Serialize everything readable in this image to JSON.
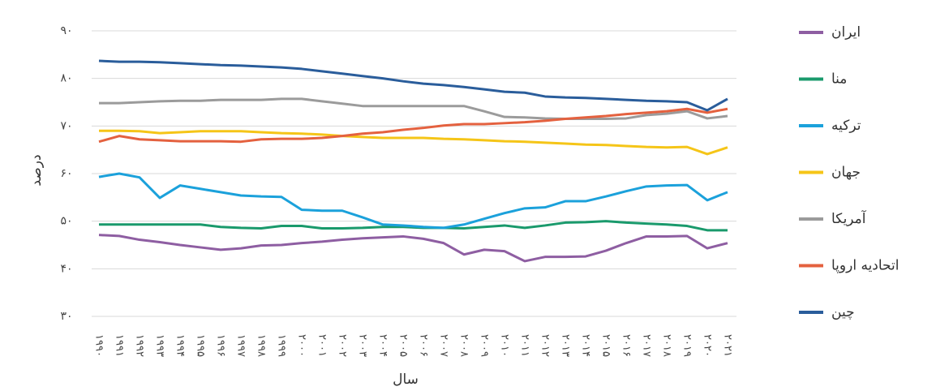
{
  "chart_data": {
    "type": "line",
    "x_label": "سال",
    "y_label": "درصد",
    "categories": [
      "۱۹۹۰",
      "۱۹۹۱",
      "۱۹۹۲",
      "۱۹۹۳",
      "۱۹۹۴",
      "۱۹۹۵",
      "۱۹۹۶",
      "۱۹۹۷",
      "۱۹۹۸",
      "۱۹۹۹",
      "۲۰۰۰",
      "۲۰۰۱",
      "۲۰۰۲",
      "۲۰۰۳",
      "۲۰۰۴",
      "۲۰۰۵",
      "۲۰۰۶",
      "۲۰۰۷",
      "۲۰۰۸",
      "۲۰۰۹",
      "۲۰۱۰",
      "۲۰۱۱",
      "۲۰۱۲",
      "۲۰۱۳",
      "۲۰۱۴",
      "۲۰۱۵",
      "۲۰۱۶",
      "۲۰۱۷",
      "۲۰۱۸",
      "۲۰۱۹",
      "۲۰۲۰",
      "۲۰۲۱"
    ],
    "series": [
      {
        "name": "ایران",
        "color": "#8e5ea2",
        "values": [
          47.1,
          46.9,
          46.1,
          45.6,
          45.0,
          44.5,
          44.0,
          44.3,
          44.9,
          45.0,
          45.4,
          45.7,
          46.1,
          46.4,
          46.6,
          46.8,
          46.3,
          45.4,
          43.0,
          44.0,
          43.7,
          41.6,
          42.5,
          42.5,
          42.6,
          43.8,
          45.4,
          46.8,
          46.8,
          46.9,
          44.3,
          45.4
        ]
      },
      {
        "name": "منا",
        "color": "#1a9a6c",
        "values": [
          49.3,
          49.3,
          49.3,
          49.3,
          49.3,
          49.3,
          48.8,
          48.6,
          48.5,
          49.0,
          49.0,
          48.5,
          48.5,
          48.6,
          48.8,
          48.8,
          48.6,
          48.6,
          48.5,
          48.8,
          49.1,
          48.6,
          49.1,
          49.7,
          49.8,
          50.0,
          49.7,
          49.5,
          49.3,
          49.0,
          48.1,
          48.1
        ]
      },
      {
        "name": "ترکیه",
        "color": "#1ba1db",
        "values": [
          59.3,
          60.0,
          59.2,
          54.9,
          57.5,
          56.8,
          56.1,
          55.4,
          55.2,
          55.1,
          52.4,
          52.2,
          52.2,
          50.8,
          49.3,
          49.1,
          48.8,
          48.6,
          49.3,
          50.5,
          51.7,
          52.7,
          52.9,
          54.2,
          54.2,
          55.2,
          56.3,
          57.3,
          57.5,
          57.6,
          54.4,
          56.1
        ]
      },
      {
        "name": "جهان",
        "color": "#f5c518",
        "values": [
          69.0,
          69.0,
          68.9,
          68.5,
          68.7,
          68.9,
          68.9,
          68.9,
          68.7,
          68.5,
          68.4,
          68.2,
          67.9,
          67.7,
          67.5,
          67.5,
          67.5,
          67.3,
          67.2,
          67.0,
          66.8,
          66.7,
          66.5,
          66.3,
          66.1,
          66.0,
          65.8,
          65.6,
          65.5,
          65.6,
          64.1,
          65.5
        ]
      },
      {
        "name": "آمریکا",
        "color": "#9b9b9b",
        "values": [
          74.8,
          74.8,
          75.0,
          75.2,
          75.3,
          75.3,
          75.5,
          75.5,
          75.5,
          75.7,
          75.7,
          75.2,
          74.7,
          74.2,
          74.2,
          74.2,
          74.2,
          74.2,
          74.2,
          73.1,
          71.9,
          71.8,
          71.6,
          71.5,
          71.5,
          71.5,
          71.6,
          72.3,
          72.6,
          73.1,
          71.6,
          72.1
        ]
      },
      {
        "name": "اتحادیه اروپا",
        "color": "#e4613f",
        "values": [
          66.7,
          67.9,
          67.2,
          67.0,
          66.8,
          66.8,
          66.8,
          66.7,
          67.2,
          67.3,
          67.3,
          67.5,
          67.9,
          68.4,
          68.7,
          69.2,
          69.6,
          70.1,
          70.4,
          70.4,
          70.6,
          70.8,
          71.1,
          71.5,
          71.8,
          72.1,
          72.5,
          72.8,
          73.1,
          73.6,
          72.8,
          73.6
        ]
      },
      {
        "name": "چین",
        "color": "#2a5d9b",
        "values": [
          83.7,
          83.5,
          83.5,
          83.4,
          83.2,
          83.0,
          82.8,
          82.7,
          82.5,
          82.3,
          82.0,
          81.5,
          81.0,
          80.5,
          80.0,
          79.4,
          78.9,
          78.6,
          78.2,
          77.7,
          77.2,
          77.0,
          76.2,
          76.0,
          75.9,
          75.7,
          75.5,
          75.3,
          75.2,
          75.0,
          73.3,
          75.7
        ]
      }
    ],
    "ylim": [
      30,
      90
    ],
    "yticks": [
      {
        "value": 30,
        "label": "۳۰"
      },
      {
        "value": 40,
        "label": "۴۰"
      },
      {
        "value": 50,
        "label": "۵۰"
      },
      {
        "value": 60,
        "label": "۶۰"
      },
      {
        "value": 70,
        "label": "۷۰"
      },
      {
        "value": 80,
        "label": "۸۰"
      },
      {
        "value": 90,
        "label": "۹۰"
      }
    ],
    "grid": true,
    "legend": "right"
  }
}
